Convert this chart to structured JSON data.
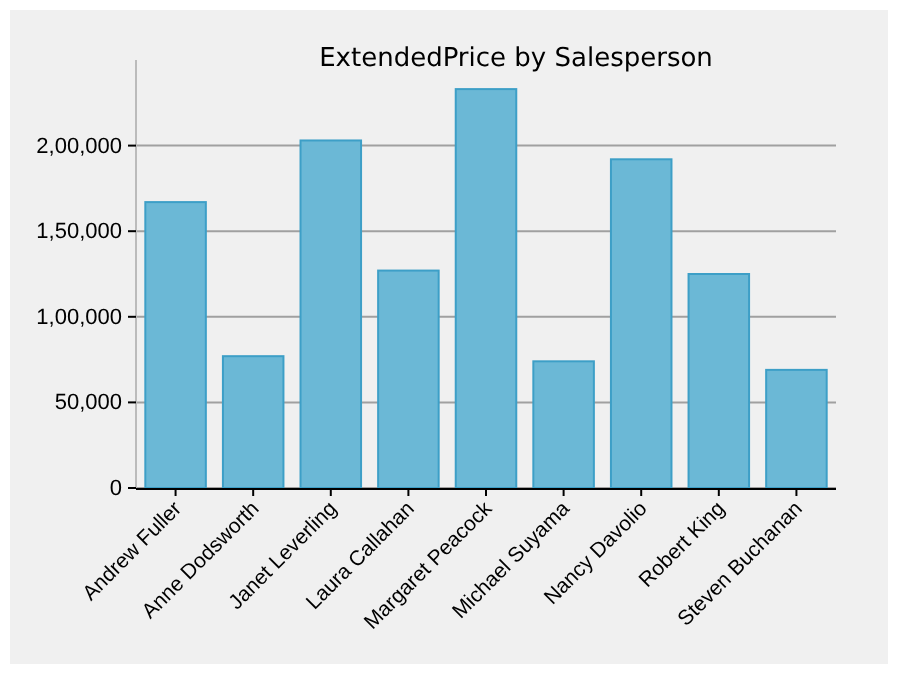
{
  "chart_data": {
    "type": "bar",
    "title": "ExtendedPrice by Salesperson",
    "categories": [
      "Andrew Fuller",
      "Anne Dodsworth",
      "Janet Leverling",
      "Laura Callahan",
      "Margaret Peacock",
      "Michael Suyama",
      "Nancy Davolio",
      "Robert King",
      "Steven Buchanan"
    ],
    "values": [
      167000,
      77000,
      203000,
      127000,
      233000,
      74000,
      192000,
      125000,
      69000
    ],
    "color": "#6bb8d6",
    "ylim": [
      0,
      250000
    ],
    "yticks": [
      0,
      {
        "value": 50000,
        "label": "50,000"
      },
      {
        "value": 100000,
        "label": "1,00,000"
      },
      {
        "value": 150000,
        "label": "1,50,000"
      },
      {
        "value": 200000,
        "label": "2,00,000"
      }
    ],
    "grid": "y"
  }
}
